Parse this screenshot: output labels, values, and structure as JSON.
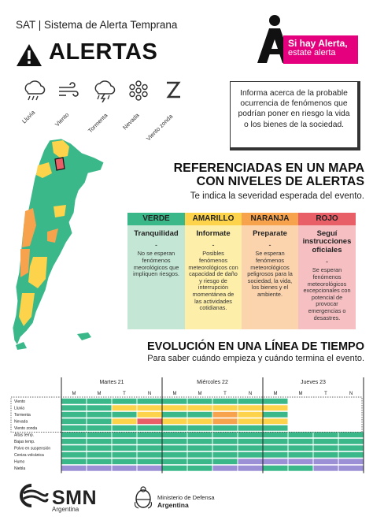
{
  "header": {
    "title": "SAT | Sistema de Alerta Temprana",
    "alerts_word": "ALERTAS",
    "tag_line1": "Si hay Alerta,",
    "tag_line2": "estate alerta"
  },
  "hazards": [
    {
      "label": "Lluvia",
      "icon": "rain-cloud-icon"
    },
    {
      "label": "Viento",
      "icon": "wind-icon"
    },
    {
      "label": "Tormenta",
      "icon": "storm-cloud-icon"
    },
    {
      "label": "Nevada",
      "icon": "snowflake-icon"
    },
    {
      "label": "Viento zonda",
      "icon": "zonda-icon"
    }
  ],
  "info": {
    "text": "Informa acerca de la probable ocurrencia de fenómenos que podrían poner en riesgo la vida o los bienes de la sociedad."
  },
  "reference": {
    "title_line1": "REFERENCIADAS EN UN MAPA",
    "title_line2": "CON NIVELES DE ALERTAS",
    "subtitle": "Te indica la severidad esperada del evento."
  },
  "levels": [
    {
      "header": "VERDE",
      "name": "Tranquilidad",
      "dash": "-",
      "desc": "No se esperan fenómenos meorológicos que impliquen riesgos.",
      "head_color": "#3ab88a",
      "body_color": "#c4e7d5"
    },
    {
      "header": "AMARILLO",
      "name": "Informate",
      "dash": "-",
      "desc": "Posibles fenómenos meteorológicos con capacidad de daño y riesgo de interrupción momentánea de las actividades cotidianas.",
      "head_color": "#fcd34a",
      "body_color": "#fdeeaa"
    },
    {
      "header": "NARANJA",
      "name": "Preparate",
      "dash": "-",
      "desc": "Se esperan fenómenos meteorológicos peligrosos para la sociedad, la vida, los bienes y el ambiente.",
      "head_color": "#f7a24d",
      "body_color": "#fbd3ad"
    },
    {
      "header": "ROJO",
      "name": "Seguí instrucciones oficiales",
      "dash": "-",
      "desc": "Se esperan fenómenos meteorológicos excepcionales con potencial de provocar emergencias o desastres.",
      "head_color": "#e95f67",
      "body_color": "#f6c0c3"
    }
  ],
  "evolution": {
    "title": "EVOLUCIÓN EN UNA LÍNEA DE TIEMPO",
    "subtitle": "Para saber cuándo empieza y cuándo termina el evento."
  },
  "timeline": {
    "days": [
      "Martes 21",
      "Miércoles 22",
      "Jueves 23"
    ],
    "periods": [
      "M",
      "M",
      "T",
      "N"
    ],
    "rows": [
      {
        "label": "Viento",
        "cells": [
          "g",
          "g",
          "g",
          "g",
          "g",
          "g",
          "g",
          "g",
          "g",
          "w",
          "w",
          "w"
        ]
      },
      {
        "label": "Lluvia",
        "cells": [
          "g",
          "g",
          "y",
          "y",
          "y",
          "y",
          "y",
          "y",
          "y",
          "w",
          "w",
          "w"
        ]
      },
      {
        "label": "Tormenta",
        "cells": [
          "g",
          "g",
          "g",
          "y",
          "g",
          "g",
          "o",
          "y",
          "g",
          "w",
          "w",
          "w"
        ]
      },
      {
        "label": "Nevada",
        "cells": [
          "g",
          "g",
          "y",
          "r",
          "y",
          "y",
          "o",
          "y",
          "y",
          "w",
          "w",
          "w"
        ]
      },
      {
        "label": "Viento zonda",
        "cells": [
          "g",
          "g",
          "g",
          "g",
          "g",
          "g",
          "g",
          "g",
          "g",
          "w",
          "w",
          "w"
        ]
      },
      {
        "label": "Altas temp.",
        "cells": [
          "g",
          "g",
          "g",
          "g",
          "g",
          "g",
          "g",
          "g",
          "g",
          "g",
          "g",
          "g"
        ]
      },
      {
        "label": "Bajas temp.",
        "cells": [
          "g",
          "g",
          "g",
          "g",
          "g",
          "g",
          "g",
          "g",
          "g",
          "g",
          "g",
          "g"
        ]
      },
      {
        "label": "Polvo en suspensión",
        "cells": [
          "g",
          "g",
          "g",
          "g",
          "g",
          "g",
          "g",
          "g",
          "g",
          "g",
          "g",
          "g"
        ]
      },
      {
        "label": "Ceniza volcánica",
        "cells": [
          "g",
          "g",
          "g",
          "g",
          "g",
          "g",
          "g",
          "g",
          "g",
          "g",
          "g",
          "g"
        ]
      },
      {
        "label": "Humo",
        "cells": [
          "g",
          "g",
          "g",
          "g",
          "g",
          "g",
          "g",
          "p",
          "p",
          "p",
          "p",
          "p"
        ]
      },
      {
        "label": "Niebla",
        "cells": [
          "p",
          "p",
          "p",
          "p",
          "g",
          "g",
          "p",
          "p",
          "g",
          "g",
          "p",
          "p"
        ]
      }
    ],
    "colors": {
      "g": "#3ab88a",
      "y": "#fcd34a",
      "o": "#f7a24d",
      "r": "#e95f67",
      "p": "#9b8fd6",
      "w": "#ffffff"
    }
  },
  "footer": {
    "smn": "SMN",
    "smn_sub": "Argentina",
    "ministry_line1": "Ministerio de Defensa",
    "ministry_line2": "Argentina"
  },
  "colors": {
    "pink": "#e5007e",
    "green": "#3ab88a",
    "yellow": "#fcd34a",
    "orange": "#f7a24d",
    "red": "#e95f67"
  }
}
